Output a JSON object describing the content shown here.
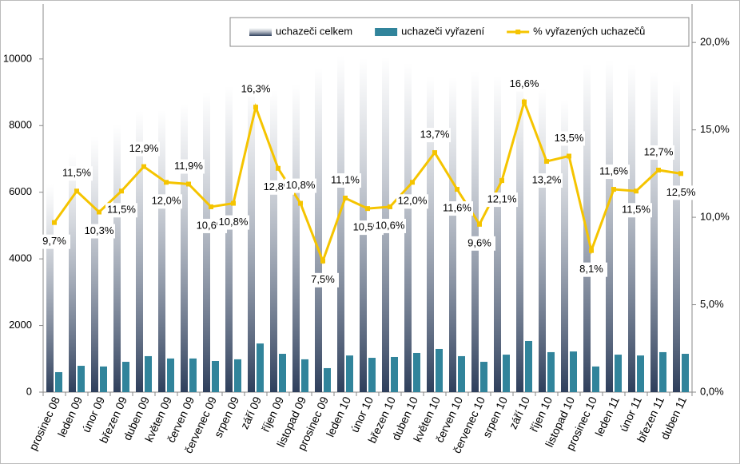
{
  "chart_data": {
    "type": "bar-line",
    "categories": [
      "prosinec 08",
      "leden 09",
      "únor 09",
      "březen 09",
      "duben 09",
      "květen 09",
      "červen 09",
      "červenec 09",
      "srpen 09",
      "září 09",
      "říjen 09",
      "listopad 09",
      "prosinec 09",
      "leden 10",
      "únor 10",
      "březen 10",
      "duben 10",
      "květen 10",
      "červen 10",
      "červenec 10",
      "srpen 10",
      "září 10",
      "říjen 10",
      "listopad 10",
      "prosinec 10",
      "leden 11",
      "únor 11",
      "březen 11",
      "duben 11"
    ],
    "series": [
      {
        "name": "uchazeči celkem",
        "type": "bar",
        "color": "#2e3f5c",
        "values": [
          6235,
          7150,
          7670,
          8030,
          8440,
          8465,
          8660,
          9000,
          9180,
          9140,
          9060,
          9230,
          9740,
          10100,
          10020,
          10070,
          9880,
          9470,
          9450,
          9640,
          9500,
          9380,
          9110,
          8780,
          9830,
          9950,
          9830,
          9620,
          9330
        ]
      },
      {
        "name": "uchazeči vyřazení",
        "type": "bar",
        "color": "#31849b",
        "values": [
          600,
          790,
          770,
          910,
          1080,
          1010,
          1010,
          935,
          985,
          1460,
          1150,
          985,
          720,
          1100,
          1030,
          1055,
          1175,
          1295,
          1080,
          910,
          1125,
          1535,
          1200,
          1220,
          770,
          1125,
          1100,
          1200,
          1150
        ]
      },
      {
        "name": "% vyřazených uchazečů",
        "type": "line",
        "axis": "y2",
        "color": "#f5c400",
        "values": [
          9.7,
          11.5,
          10.3,
          11.5,
          12.9,
          12.0,
          11.9,
          10.6,
          10.8,
          16.3,
          12.8,
          10.8,
          7.5,
          11.1,
          10.5,
          10.6,
          12.0,
          13.7,
          11.6,
          9.6,
          12.1,
          16.6,
          13.2,
          13.5,
          8.1,
          11.6,
          11.5,
          12.7,
          12.5
        ],
        "value_labels": [
          "9,7%",
          "11,5%",
          "10,3%",
          "11,5%",
          "12,9%",
          "12,0%",
          "11,9%",
          "10,6%",
          "10,8%",
          "16,3%",
          "12,8%",
          "10,8%",
          "7,5%",
          "11,1%",
          "10,5%",
          "10,6%",
          "12,0%",
          "13,7%",
          "11,6%",
          "9,6%",
          "12,1%",
          "16,6%",
          "13,2%",
          "13,5%",
          "8,1%",
          "11,6%",
          "11,5%",
          "12,7%",
          "12,5%"
        ]
      }
    ],
    "ylim": [
      0,
      11650
    ],
    "yticks": [
      0,
      2000,
      4000,
      6000,
      8000,
      10000
    ],
    "y2lim": [
      0,
      22.2
    ],
    "y2ticks": [
      {
        "value": 0,
        "label": "0,0%"
      },
      {
        "value": 5,
        "label": "5,0%"
      },
      {
        "value": 10,
        "label": "10,0%"
      },
      {
        "value": 15,
        "label": "15,0%"
      },
      {
        "value": 20,
        "label": "20,0%"
      }
    ],
    "grid": false
  }
}
